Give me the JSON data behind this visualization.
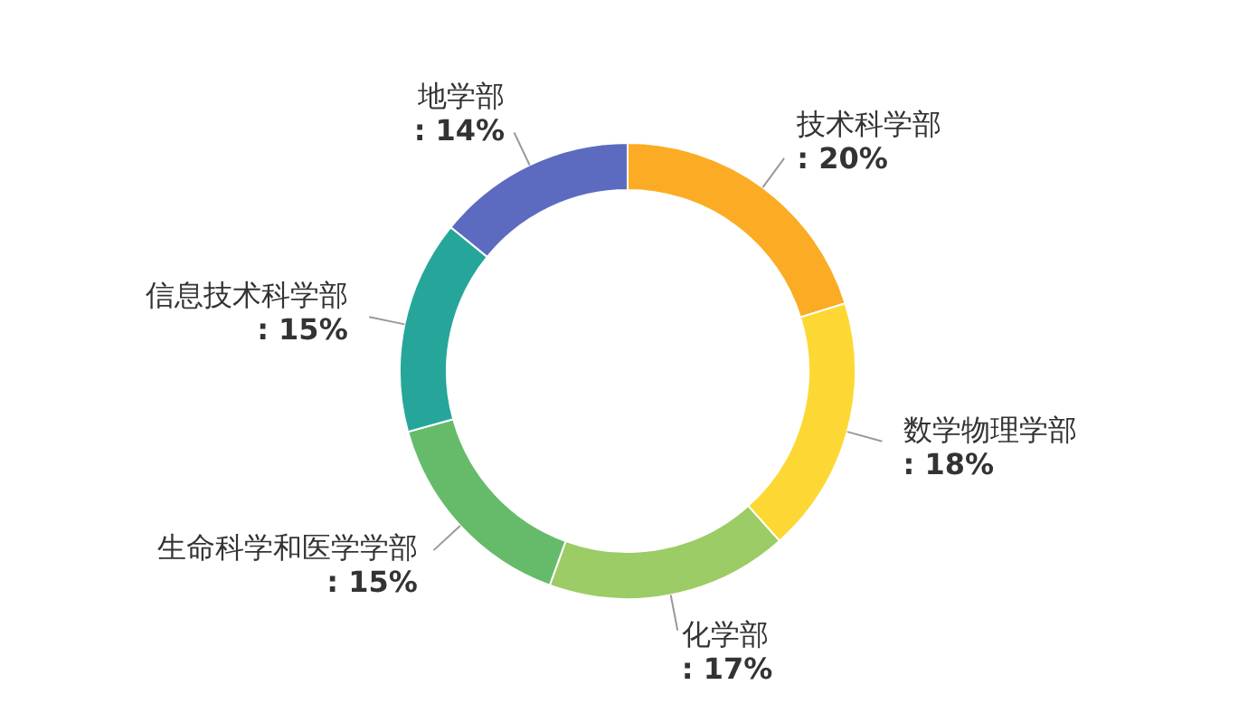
{
  "chart_data": {
    "type": "donut",
    "categories": [
      "技术科学部",
      "数学物理学部",
      "化学部",
      "生命科学和医学学部",
      "信息技术科学部",
      "地学部"
    ],
    "values": [
      20,
      18,
      17,
      15,
      15,
      14
    ],
    "value_labels": [
      ": 20%",
      ": 18%",
      ": 17%",
      ": 15%",
      ": 15%",
      ": 14%"
    ],
    "colors": [
      "#fbac24",
      "#fdd835",
      "#9ccc65",
      "#66bb6a",
      "#26a69a",
      "#5c6bc0"
    ],
    "legend": false
  }
}
